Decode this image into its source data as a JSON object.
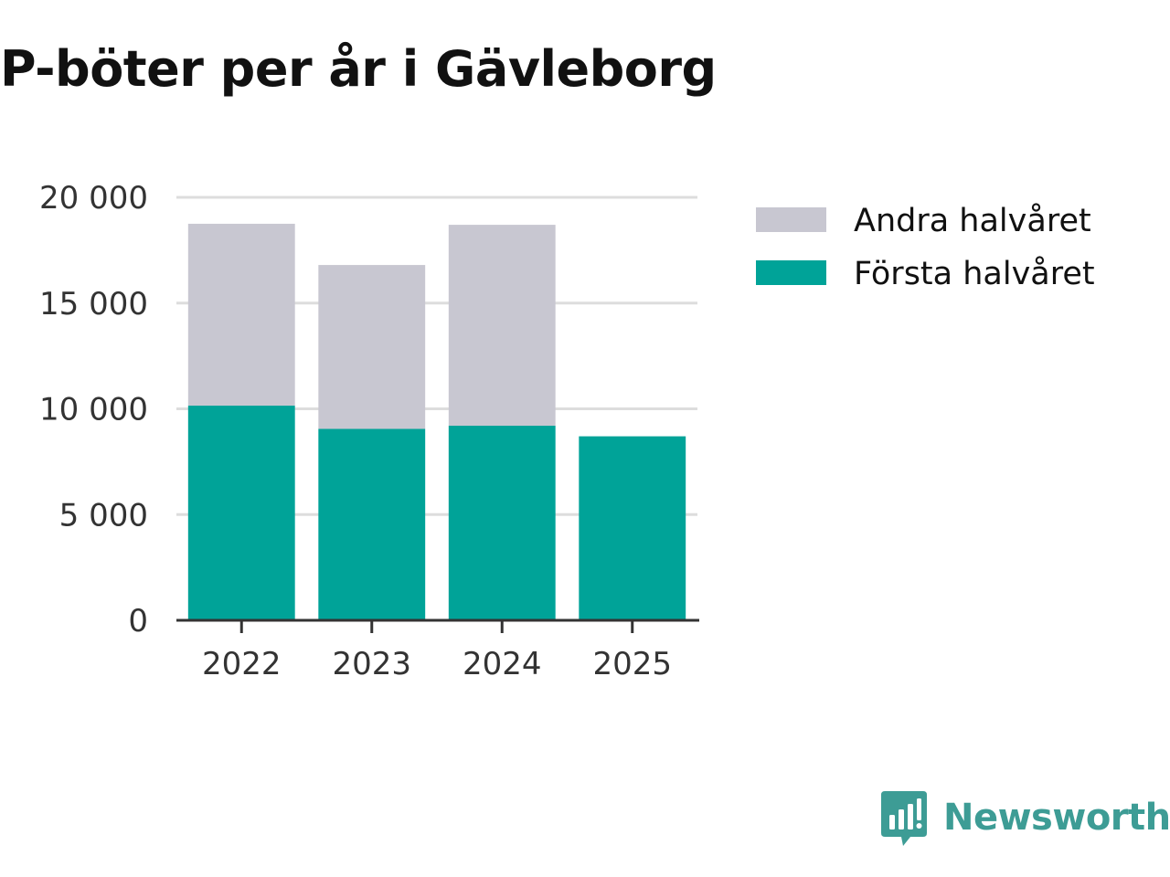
{
  "title": "P-böter per år i Gävleborg",
  "brand": {
    "name": "Newsworthy",
    "icon": "newsworthy-logo-icon"
  },
  "colors": {
    "forsta": "#00a398",
    "andra": "#c8c7d1",
    "grid": "#dddddd",
    "axis": "#333333",
    "brand": "#3d9c95"
  },
  "chart_data": {
    "type": "bar",
    "stacked": true,
    "title": "P-böter per år i Gävleborg",
    "xlabel": "",
    "ylabel": "",
    "categories": [
      "2022",
      "2023",
      "2024",
      "2025"
    ],
    "series": [
      {
        "name": "Första halvåret",
        "values": [
          10150,
          9050,
          9200,
          8700
        ],
        "color": "#00a398"
      },
      {
        "name": "Andra halvåret",
        "values": [
          8600,
          7750,
          9500,
          0
        ],
        "color": "#c8c7d1"
      }
    ],
    "ylim": [
      0,
      20000
    ],
    "yticks": [
      0,
      5000,
      10000,
      15000,
      20000
    ],
    "ytick_labels": [
      "0",
      "5 000",
      "10 000",
      "15 000",
      "20 000"
    ],
    "grid": true,
    "legend": {
      "position": "right",
      "entries": [
        "Andra halvåret",
        "Första halvåret"
      ]
    }
  }
}
